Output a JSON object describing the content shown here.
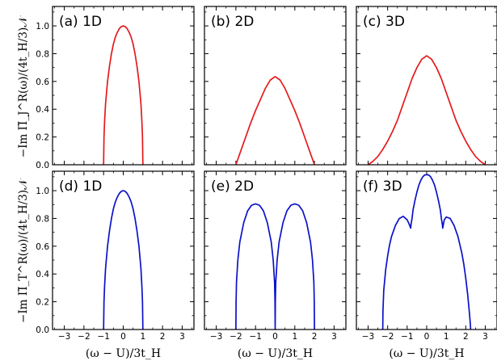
{
  "figure": {
    "xlabel": "(ω − U)/3t_H",
    "row_ylabels": [
      "−Im Π̃_J^R(ω)/(4t_H/3)𝒩",
      "−Im Π̃_T^R(ω)/(4t_H/3)𝒩"
    ],
    "colors": {
      "red": "#e41a1c",
      "blue": "#0b12c8"
    }
  },
  "chart_data": [
    {
      "type": "line",
      "label": "(a) 1D",
      "xlim": [
        -3.6,
        3.6
      ],
      "ylim": [
        0,
        1.14
      ],
      "xticks": [],
      "yticks": [
        "0.0",
        "0.2",
        "0.4",
        "0.6",
        "0.8",
        "1.0"
      ],
      "color": "#e41a1c",
      "x": [
        -1.0,
        -0.98,
        -0.95,
        -0.9,
        -0.8,
        -0.7,
        -0.6,
        -0.5,
        -0.4,
        -0.3,
        -0.2,
        -0.1,
        0.0,
        0.1,
        0.2,
        0.3,
        0.4,
        0.5,
        0.6,
        0.7,
        0.8,
        0.9,
        0.95,
        0.98,
        1.0
      ],
      "y": [
        0.0,
        0.2,
        0.31,
        0.44,
        0.6,
        0.71,
        0.8,
        0.87,
        0.92,
        0.954,
        0.98,
        0.995,
        1.0,
        0.995,
        0.98,
        0.954,
        0.92,
        0.87,
        0.8,
        0.71,
        0.6,
        0.44,
        0.31,
        0.2,
        0.0
      ]
    },
    {
      "type": "line",
      "label": "(b) 2D",
      "xlim": [
        -3.6,
        3.6
      ],
      "ylim": [
        0,
        1.14
      ],
      "xticks": [],
      "yticks": [],
      "color": "#e41a1c",
      "x": [
        -2.0,
        -1.75,
        -1.5,
        -1.25,
        -1.0,
        -0.75,
        -0.5,
        -0.25,
        0.0,
        0.25,
        0.5,
        0.75,
        1.0,
        1.25,
        1.5,
        1.75,
        2.0
      ],
      "y": [
        0.0,
        0.1,
        0.2,
        0.3,
        0.39,
        0.47,
        0.55,
        0.61,
        0.635,
        0.61,
        0.55,
        0.47,
        0.39,
        0.3,
        0.2,
        0.1,
        0.0
      ]
    },
    {
      "type": "line",
      "label": "(c) 3D",
      "xlim": [
        -3.6,
        3.6
      ],
      "ylim": [
        0,
        1.14
      ],
      "xticks": [],
      "yticks": [],
      "color": "#e41a1c",
      "x": [
        -3.0,
        -2.75,
        -2.5,
        -2.25,
        -2.0,
        -1.75,
        -1.5,
        -1.25,
        -1.0,
        -0.75,
        -0.5,
        -0.25,
        0.0,
        0.25,
        0.5,
        0.75,
        1.0,
        1.25,
        1.5,
        1.75,
        2.0,
        2.25,
        2.5,
        2.75,
        3.0
      ],
      "y": [
        0.0,
        0.025,
        0.06,
        0.11,
        0.17,
        0.24,
        0.32,
        0.42,
        0.52,
        0.62,
        0.7,
        0.76,
        0.785,
        0.76,
        0.7,
        0.62,
        0.52,
        0.42,
        0.32,
        0.24,
        0.17,
        0.11,
        0.06,
        0.025,
        0.0
      ]
    },
    {
      "type": "line",
      "label": "(d) 1D",
      "xlim": [
        -3.6,
        3.6
      ],
      "ylim": [
        0,
        1.14
      ],
      "xticks": [
        "−3",
        "−2",
        "−1",
        "0",
        "1",
        "2",
        "3"
      ],
      "yticks": [
        "0.0",
        "0.2",
        "0.4",
        "0.6",
        "0.8",
        "1.0"
      ],
      "color": "#0b12c8",
      "x": [
        -1.0,
        -0.98,
        -0.95,
        -0.9,
        -0.8,
        -0.7,
        -0.6,
        -0.5,
        -0.4,
        -0.3,
        -0.2,
        -0.1,
        0.0,
        0.1,
        0.2,
        0.3,
        0.4,
        0.5,
        0.6,
        0.7,
        0.8,
        0.9,
        0.95,
        0.98,
        1.0
      ],
      "y": [
        0.0,
        0.2,
        0.31,
        0.44,
        0.6,
        0.71,
        0.8,
        0.87,
        0.92,
        0.954,
        0.98,
        0.995,
        1.0,
        0.995,
        0.98,
        0.954,
        0.92,
        0.87,
        0.8,
        0.71,
        0.6,
        0.44,
        0.31,
        0.2,
        0.0
      ]
    },
    {
      "type": "line",
      "label": "(e) 2D",
      "xlim": [
        -3.6,
        3.6
      ],
      "ylim": [
        0,
        1.14
      ],
      "xticks": [
        "−3",
        "−2",
        "−1",
        "0",
        "1",
        "2",
        "3"
      ],
      "yticks": [],
      "color": "#0b12c8",
      "x": [
        -2.0,
        -1.99,
        -1.97,
        -1.9,
        -1.8,
        -1.6,
        -1.4,
        -1.2,
        -1.0,
        -0.8,
        -0.6,
        -0.4,
        -0.2,
        -0.1,
        -0.03,
        -0.01,
        0.0,
        0.01,
        0.03,
        0.1,
        0.2,
        0.4,
        0.6,
        0.8,
        1.0,
        1.2,
        1.4,
        1.6,
        1.8,
        1.9,
        1.97,
        1.99,
        2.0
      ],
      "y": [
        0.0,
        0.2,
        0.34,
        0.5,
        0.63,
        0.77,
        0.855,
        0.895,
        0.905,
        0.895,
        0.855,
        0.77,
        0.63,
        0.5,
        0.34,
        0.2,
        0.0,
        0.2,
        0.34,
        0.5,
        0.63,
        0.77,
        0.855,
        0.895,
        0.905,
        0.895,
        0.855,
        0.77,
        0.63,
        0.5,
        0.34,
        0.2,
        0.0
      ]
    },
    {
      "type": "line",
      "label": "(f) 3D",
      "xlim": [
        -3.6,
        3.6
      ],
      "ylim": [
        0,
        1.14
      ],
      "xticks": [
        "−3",
        "−2",
        "−1",
        "0",
        "1",
        "2",
        "3"
      ],
      "yticks": [],
      "color": "#0b12c8",
      "x": [
        -2.25,
        -2.24,
        -2.2,
        -2.1,
        -2.0,
        -1.9,
        -1.8,
        -1.6,
        -1.4,
        -1.2,
        -1.0,
        -0.9,
        -0.82,
        -0.8,
        -0.75,
        -0.7,
        -0.6,
        -0.5,
        -0.4,
        -0.3,
        -0.2,
        -0.1,
        0.0,
        0.1,
        0.2,
        0.3,
        0.4,
        0.5,
        0.6,
        0.7,
        0.75,
        0.8,
        0.82,
        0.9,
        1.0,
        1.2,
        1.4,
        1.6,
        1.8,
        1.9,
        2.0,
        2.1,
        2.2,
        2.24,
        2.25
      ],
      "y": [
        0.0,
        0.13,
        0.28,
        0.43,
        0.53,
        0.61,
        0.67,
        0.75,
        0.8,
        0.815,
        0.79,
        0.76,
        0.73,
        0.76,
        0.8,
        0.86,
        0.93,
        0.99,
        1.04,
        1.075,
        1.1,
        1.113,
        1.115,
        1.113,
        1.1,
        1.075,
        1.04,
        0.99,
        0.93,
        0.86,
        0.8,
        0.76,
        0.73,
        0.79,
        0.81,
        0.8,
        0.75,
        0.67,
        0.55,
        0.47,
        0.37,
        0.25,
        0.1,
        0.03,
        0.0
      ]
    }
  ]
}
